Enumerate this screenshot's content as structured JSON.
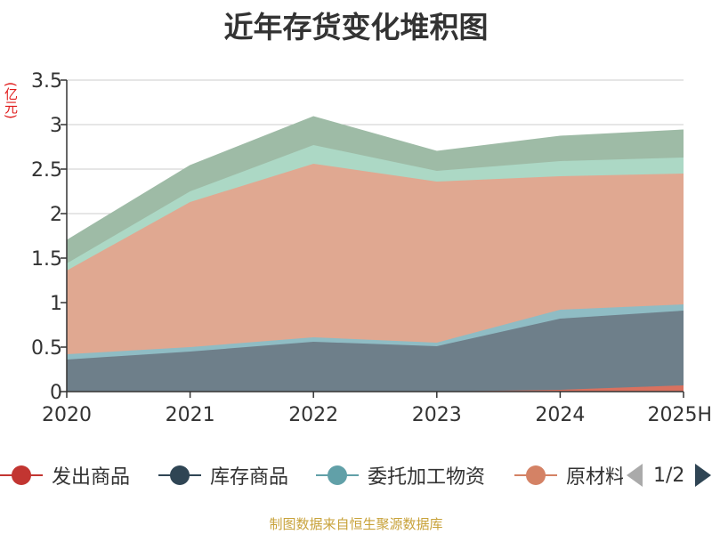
{
  "chart_data": {
    "type": "area",
    "stacked": true,
    "title": "近年存货变化堆积图",
    "ylabel": "(亿元)",
    "categories": [
      "2020",
      "2021",
      "2022",
      "2023",
      "2024",
      "2025H"
    ],
    "yticks": [
      "0",
      "0.5",
      "1",
      "1.5",
      "2",
      "2.5",
      "3",
      "3.5"
    ],
    "ylim": [
      0,
      3.5
    ],
    "grid": true,
    "legend_position": "bottom",
    "series": [
      {
        "name": "发出商品",
        "color": "#c23531",
        "fill": "#d9715f",
        "values": [
          0.0,
          0.0,
          0.0,
          0.0,
          0.02,
          0.07
        ]
      },
      {
        "name": "库存商品",
        "color": "#2f4554",
        "fill": "#6e7f8a",
        "values": [
          0.36,
          0.45,
          0.56,
          0.51,
          0.8,
          0.84
        ]
      },
      {
        "name": "委托加工物资",
        "color": "#61a0a8",
        "fill": "#8fbcc4",
        "values": [
          0.06,
          0.05,
          0.05,
          0.04,
          0.1,
          0.07
        ]
      },
      {
        "name": "原材料",
        "color": "#d48265",
        "fill": "#e0a891",
        "values": [
          0.94,
          1.63,
          1.95,
          1.81,
          1.5,
          1.47
        ]
      },
      {
        "name": "",
        "color": "#91c7ae",
        "fill": "#acd8c5",
        "values": [
          0.08,
          0.12,
          0.21,
          0.12,
          0.17,
          0.18
        ]
      },
      {
        "name": "",
        "color": "#749f83",
        "fill": "#9ebba6",
        "values": [
          0.26,
          0.29,
          0.32,
          0.22,
          0.28,
          0.31
        ]
      }
    ]
  },
  "legend": {
    "page": "1/2",
    "items": [
      "发出商品",
      "库存商品",
      "委托加工物资",
      "原材料"
    ]
  },
  "source": "制图数据来自恒生聚源数据库"
}
